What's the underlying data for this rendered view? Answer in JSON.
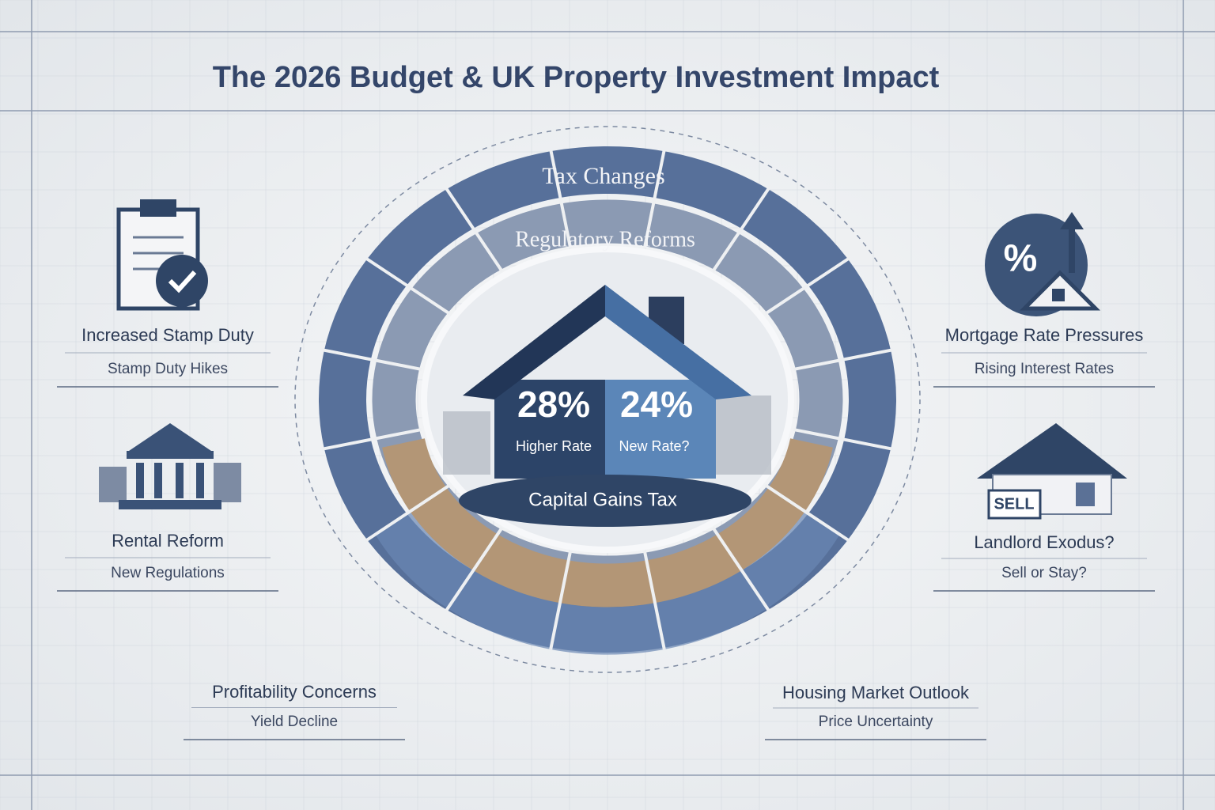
{
  "header": {
    "title": "The 2026 Budget & UK Property Investment Impact"
  },
  "rings": {
    "outer": "Tax Changes",
    "middle": "Regulatory Reforms"
  },
  "center": {
    "higher_rate": {
      "value": "28%",
      "label": "Higher Rate"
    },
    "new_rate": {
      "value": "24%",
      "label": "New Rate?"
    },
    "band": "Capital Gains Tax"
  },
  "items": [
    {
      "title": "Increased Stamp Duty",
      "subtitle": "Stamp Duty Hikes"
    },
    {
      "title": "Rental Reform",
      "subtitle": "New Regulations"
    },
    {
      "title": "Profitability Concerns",
      "subtitle": "Yield Decline"
    },
    {
      "title": "Mortgage Rate Pressures",
      "subtitle": "Rising Interest Rates"
    },
    {
      "title": "Landlord Exodus?",
      "subtitle": "Sell or Stay?"
    },
    {
      "title": "Housing Market Outlook",
      "subtitle": "Price Uncertainty"
    }
  ],
  "icons": {
    "percent": "%",
    "sell": "SELL"
  }
}
